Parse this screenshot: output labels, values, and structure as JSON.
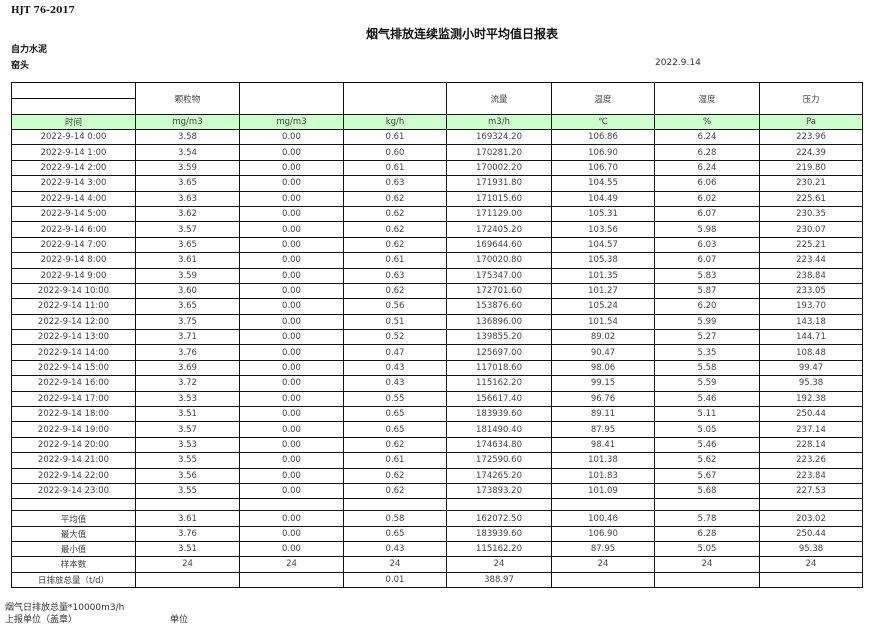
{
  "header": {
    "standard": "HJT  76-2017",
    "title": "烟气排放连续监测小时平均值日报表",
    "company": "自力水泥",
    "kiln": "窑头",
    "date": "2022.9.14"
  },
  "columns": [
    {
      "name": "",
      "unit": "时间"
    },
    {
      "name": "颗粒物",
      "unit": "mg/m3"
    },
    {
      "name": "",
      "unit": "mg/m3"
    },
    {
      "name": "",
      "unit": "kg/h"
    },
    {
      "name": "流量",
      "unit": "m3/h"
    },
    {
      "name": "温度",
      "unit": "℃"
    },
    {
      "name": "湿度",
      "unit": "%"
    },
    {
      "name": "压力",
      "unit": "Pa"
    }
  ],
  "rows": [
    [
      "2022-9-14 0:00",
      "3.58",
      "0.00",
      "0.61",
      "169324.20",
      "106.86",
      "6.24",
      "223.96"
    ],
    [
      "2022-9-14 1:00",
      "3.54",
      "0.00",
      "0.60",
      "170281.20",
      "106.90",
      "6.28",
      "224.39"
    ],
    [
      "2022-9-14 2:00",
      "3.59",
      "0.00",
      "0.61",
      "170002.20",
      "106.70",
      "6.24",
      "219.80"
    ],
    [
      "2022-9-14 3:00",
      "3.65",
      "0.00",
      "0.63",
      "171931.80",
      "104.55",
      "6.06",
      "230.21"
    ],
    [
      "2022-9-14 4:00",
      "3.63",
      "0.00",
      "0.62",
      "171015.60",
      "104.49",
      "6.02",
      "225.61"
    ],
    [
      "2022-9-14 5:00",
      "3.62",
      "0.00",
      "0.62",
      "171129.00",
      "105.31",
      "6.07",
      "230.35"
    ],
    [
      "2022-9-14 6:00",
      "3.57",
      "0.00",
      "0.62",
      "172405.20",
      "103.56",
      "5.98",
      "230.07"
    ],
    [
      "2022-9-14 7:00",
      "3.65",
      "0.00",
      "0.62",
      "169644.60",
      "104.57",
      "6.03",
      "225.21"
    ],
    [
      "2022-9-14 8:00",
      "3.61",
      "0.00",
      "0.61",
      "170020.80",
      "105.38",
      "6.07",
      "223.44"
    ],
    [
      "2022-9-14 9:00",
      "3.59",
      "0.00",
      "0.63",
      "175347.00",
      "101.35",
      "5.83",
      "238.84"
    ],
    [
      "2022-9-14 10:00",
      "3.60",
      "0.00",
      "0.62",
      "172701.60",
      "101.27",
      "5.87",
      "233.05"
    ],
    [
      "2022-9-14 11:00",
      "3.65",
      "0.00",
      "0.56",
      "153876.60",
      "105.24",
      "6.20",
      "193.70"
    ],
    [
      "2022-9-14 12:00",
      "3.75",
      "0.00",
      "0.51",
      "136896.00",
      "101.54",
      "5.99",
      "143.18"
    ],
    [
      "2022-9-14 13:00",
      "3.71",
      "0.00",
      "0.52",
      "139855.20",
      "89.02",
      "5.27",
      "144.71"
    ],
    [
      "2022-9-14 14:00",
      "3.76",
      "0.00",
      "0.47",
      "125697.00",
      "90.47",
      "5.35",
      "108.48"
    ],
    [
      "2022-9-14 15:00",
      "3.69",
      "0.00",
      "0.43",
      "117018.60",
      "98.06",
      "5.58",
      "99.47"
    ],
    [
      "2022-9-14 16:00",
      "3.72",
      "0.00",
      "0.43",
      "115162.20",
      "99.15",
      "5.59",
      "95.38"
    ],
    [
      "2022-9-14 17:00",
      "3.53",
      "0.00",
      "0.55",
      "156617.40",
      "96.76",
      "5.46",
      "192.38"
    ],
    [
      "2022-9-14 18:00",
      "3.51",
      "0.00",
      "0.65",
      "183939.60",
      "89.11",
      "5.11",
      "250.44"
    ],
    [
      "2022-9-14 19:00",
      "3.57",
      "0.00",
      "0.65",
      "181490.40",
      "87.95",
      "5.05",
      "237.14"
    ],
    [
      "2022-9-14 20:00",
      "3.53",
      "0.00",
      "0.62",
      "174634.80",
      "98.41",
      "5.46",
      "228.14"
    ],
    [
      "2022-9-14 21:00",
      "3.55",
      "0.00",
      "0.61",
      "172590.60",
      "101.38",
      "5.62",
      "223.26"
    ],
    [
      "2022-9-14 22:00",
      "3.56",
      "0.00",
      "0.62",
      "174265.20",
      "101.83",
      "5.67",
      "223.84"
    ],
    [
      "2022-9-14 23:00",
      "3.55",
      "0.00",
      "0.62",
      "173893.20",
      "101.09",
      "5.68",
      "227.53"
    ]
  ],
  "summary": [
    [
      "平均值",
      "3.61",
      "0.00",
      "0.58",
      "162072.50",
      "100.46",
      "5.78",
      "203.02"
    ],
    [
      "最大值",
      "3.76",
      "0.00",
      "0.65",
      "183939.60",
      "106.90",
      "6.28",
      "250.44"
    ],
    [
      "最小值",
      "3.51",
      "0.00",
      "0.43",
      "115162.20",
      "87.95",
      "5.05",
      "95.38"
    ],
    [
      "样本数",
      "24",
      "24",
      "24",
      "24",
      "24",
      "24",
      "24"
    ],
    [
      "日排放总量（t/d）",
      "",
      "",
      "0.01",
      "388.97",
      "",
      "",
      ""
    ]
  ],
  "footer": {
    "note": "烟气日排放总量*10000m3/h",
    "reporter_label": "上报单位（盖章）",
    "unit_label": "单位"
  },
  "colors": {
    "units_row_bg": "#ccffcc",
    "border": "#111111"
  }
}
